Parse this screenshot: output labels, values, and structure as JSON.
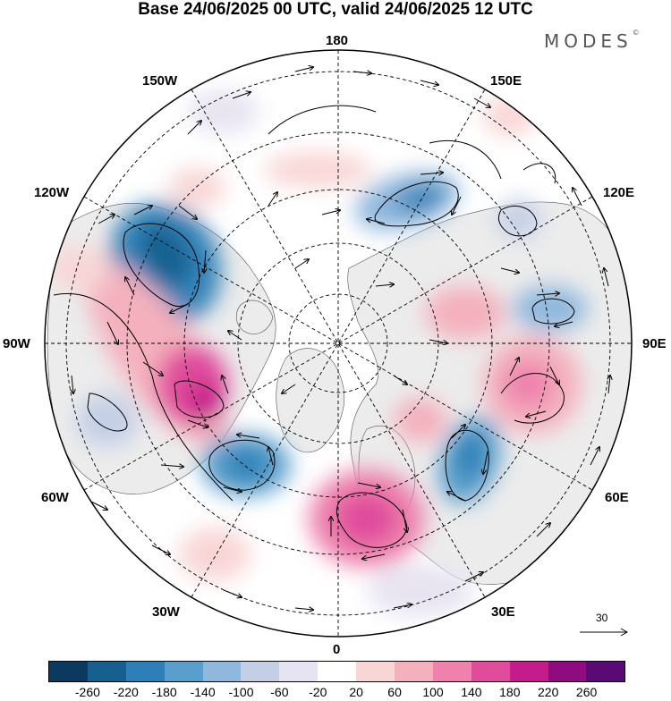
{
  "header": {
    "title": "Base 24/06/2025 00 UTC, valid 24/06/2025 12 UTC",
    "logo": "MODES",
    "logo_mark": "©"
  },
  "map": {
    "projection": "north-polar-stereographic",
    "longitude_labels": {
      "top": "180",
      "bottom": "0",
      "left": "90W",
      "right": "90E",
      "upper_left_1": "150W",
      "upper_left_2": "120W",
      "lower_left_1": "60W",
      "lower_left_2": "30W",
      "upper_right_1": "150E",
      "upper_right_2": "120E",
      "lower_right_1": "60E",
      "lower_right_2": "30E"
    },
    "wind_reference": {
      "label": "30",
      "units": "vector scale"
    },
    "land_color": "#eeeeee",
    "ocean_color": "#ffffff"
  },
  "colorbar": {
    "colors": [
      "#0b3a5e",
      "#15608f",
      "#2c80b7",
      "#5a9fcc",
      "#90b8dd",
      "#c4cfe6",
      "#e7e4f1",
      "#ffffff",
      "#f9d6d6",
      "#f4b0bd",
      "#ee82ad",
      "#e04b9c",
      "#c41c8a",
      "#8f0c80",
      "#5a0a74"
    ],
    "ticks": [
      "-260",
      "-220",
      "-180",
      "-140",
      "-100",
      "-60",
      "-20",
      "20",
      "60",
      "100",
      "140",
      "180",
      "220",
      "260"
    ]
  }
}
